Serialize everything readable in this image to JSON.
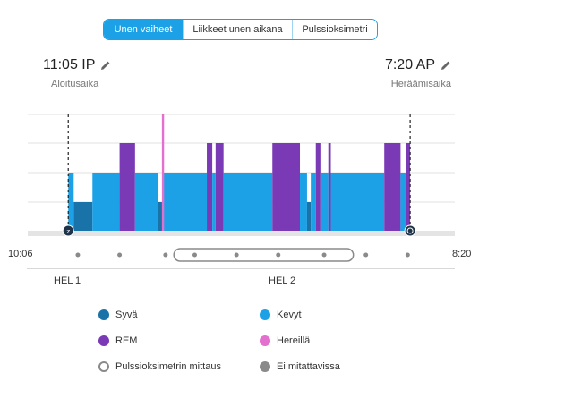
{
  "tabs": [
    {
      "label": "Unen vaiheet",
      "active": true
    },
    {
      "label": "Liikkeet unen aikana",
      "active": false
    },
    {
      "label": "Pulssioksimetri",
      "active": false
    }
  ],
  "start": {
    "time": "11:05 IP",
    "label": "Aloitusaika"
  },
  "end": {
    "time": "7:20 AP",
    "label": "Heräämisaika"
  },
  "scale": {
    "left": "10:06",
    "right": "8:20"
  },
  "days": {
    "day1": "HEL 1",
    "day2": "HEL 2"
  },
  "legend": [
    {
      "label": "Syvä",
      "color": "#1a73a8"
    },
    {
      "label": "Kevyt",
      "color": "#1da1e6"
    },
    {
      "label": "REM",
      "color": "#7b3ab5"
    },
    {
      "label": "Hereillä",
      "color": "#e36fcf"
    },
    {
      "label": "Pulssioksimetrin mittaus",
      "color": "#8a8a8a"
    },
    {
      "label": "Ei mitattavissa",
      "color": "#8a8a8a"
    }
  ],
  "colors": {
    "deep": "#1a73a8",
    "light": "#1da1e6",
    "rem": "#7b3ab5",
    "awake": "#e36fcf",
    "accent": "#1da1e6"
  },
  "chart_data": {
    "type": "timeline",
    "timeline_start": "10:06",
    "timeline_end": "8:20",
    "sleep_start": "11:05 IP",
    "sleep_end": "7:20 AP",
    "stage_levels": {
      "awake": 4,
      "rem": 3,
      "light": 2,
      "deep": 1
    },
    "x_domain_hours": [
      0,
      10.23
    ],
    "segments": [
      {
        "stage": "light",
        "start": 0.97,
        "end": 1.1
      },
      {
        "stage": "deep",
        "start": 1.1,
        "end": 1.55
      },
      {
        "stage": "light",
        "start": 1.55,
        "end": 2.2
      },
      {
        "stage": "rem",
        "start": 2.2,
        "end": 2.57
      },
      {
        "stage": "light",
        "start": 2.57,
        "end": 3.12
      },
      {
        "stage": "deep",
        "start": 3.12,
        "end": 3.22
      },
      {
        "stage": "light",
        "start": 3.22,
        "end": 4.29
      },
      {
        "stage": "rem",
        "start": 4.29,
        "end": 4.42
      },
      {
        "stage": "light",
        "start": 4.42,
        "end": 4.5
      },
      {
        "stage": "rem",
        "start": 4.5,
        "end": 4.69
      },
      {
        "stage": "light",
        "start": 4.69,
        "end": 5.86
      },
      {
        "stage": "rem",
        "start": 5.86,
        "end": 6.52
      },
      {
        "stage": "light",
        "start": 6.52,
        "end": 6.69
      },
      {
        "stage": "deep",
        "start": 6.69,
        "end": 6.78
      },
      {
        "stage": "light",
        "start": 6.78,
        "end": 6.9
      },
      {
        "stage": "rem",
        "start": 6.9,
        "end": 7.01
      },
      {
        "stage": "light",
        "start": 7.01,
        "end": 7.2
      },
      {
        "stage": "rem",
        "start": 7.2,
        "end": 7.26
      },
      {
        "stage": "light",
        "start": 7.26,
        "end": 8.54
      },
      {
        "stage": "rem",
        "start": 8.54,
        "end": 8.93
      },
      {
        "stage": "light",
        "start": 8.93,
        "end": 9.07
      },
      {
        "stage": "rem",
        "start": 9.07,
        "end": 9.16
      }
    ],
    "awake_markers": [
      3.24
    ],
    "scale_dots": [
      1.2,
      2.2,
      3.3,
      4.0,
      5.0,
      6.0,
      7.1,
      8.1,
      9.1
    ],
    "pulse_ox_window": [
      3.5,
      7.8
    ]
  }
}
